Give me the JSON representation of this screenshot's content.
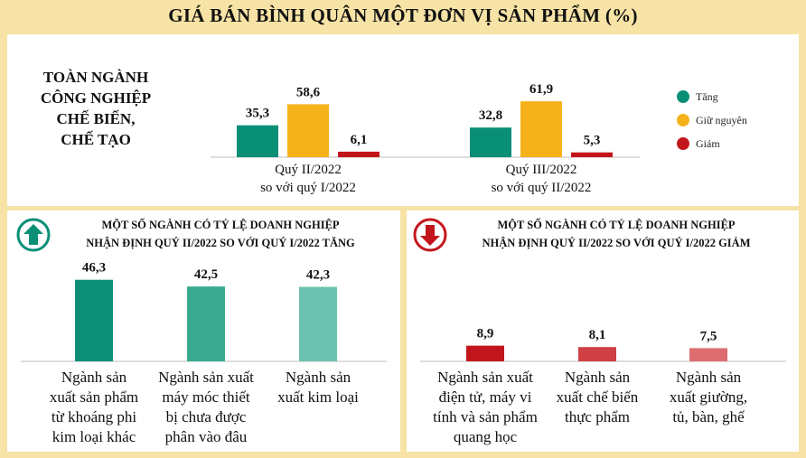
{
  "title": "GIÁ BÁN BÌNH QUÂN MỘT ĐƠN VỊ SẢN PHẨM (%)",
  "colors": {
    "tang": "#0a8f77",
    "giu_nguyen": "#f6b21b",
    "giam": "#c3161c",
    "up_bar": [
      "#0c8f76",
      "#3aab91",
      "#6cc2b0"
    ],
    "down_bar": [
      "#c3161c",
      "#cf3f43",
      "#dd6d6f"
    ]
  },
  "icons": {
    "up": "arrow-up-circle-icon",
    "down": "arrow-down-circle-icon"
  },
  "chart_data": [
    {
      "type": "bar",
      "title": "TOÀN NGÀNH CÔNG NGHIỆP CHẾ BIẾN, CHẾ TẠO",
      "title_lines": [
        "TOÀN NGÀNH",
        "CÔNG NGHIỆP",
        "CHẾ BIẾN,",
        "CHẾ TẠO"
      ],
      "categories": [
        "Quý II/2022 so với quý I/2022",
        "Quý III/2022 so với quý II/2022"
      ],
      "category_lines": [
        [
          "Quý II/2022",
          "so với quý I/2022"
        ],
        [
          "Quý III/2022",
          "so với quý II/2022"
        ]
      ],
      "series": [
        {
          "name": "Tăng",
          "values": [
            35.3,
            32.8
          ],
          "labels": [
            "35,3",
            "32,8"
          ]
        },
        {
          "name": "Giữ nguyên",
          "values": [
            58.6,
            61.9
          ],
          "labels": [
            "58,6",
            "61,9"
          ]
        },
        {
          "name": "Giảm",
          "values": [
            6.1,
            5.3
          ],
          "labels": [
            "6,1",
            "5,3"
          ]
        }
      ],
      "ylim": [
        0,
        65
      ],
      "legend": "right"
    },
    {
      "type": "bar",
      "title": "MỘT SỐ NGÀNH CÓ TỶ LỆ DOANH NGHIỆP NHẬN ĐỊNH QUÝ II/2022 SO VỚI QUÝ I/2022 TĂNG",
      "title_lines": [
        "MỘT SỐ NGÀNH CÓ TỶ LỆ DOANH NGHIỆP",
        "NHẬN ĐỊNH QUÝ II/2022 SO VỚI QUÝ I/2022 TĂNG"
      ],
      "categories": [
        "Ngành sản xuất sản phẩm từ khoáng phi kim loại khác",
        "Ngành sản xuất máy móc thiết bị chưa được phân vào đâu",
        "Ngành sản xuất kim loại"
      ],
      "category_lines": [
        [
          "Ngành sản",
          "xuất sản phẩm",
          "từ khoáng phi",
          "kim loại khác"
        ],
        [
          "Ngành sản xuất",
          "máy móc thiết",
          "bị chưa được",
          "phân vào đâu"
        ],
        [
          "Ngành sản",
          "xuất kim loại"
        ]
      ],
      "values": [
        46.3,
        42.5,
        42.3
      ],
      "labels": [
        "46,3",
        "42,5",
        "42,3"
      ],
      "ylim": [
        0,
        50
      ]
    },
    {
      "type": "bar",
      "title": "MỘT SỐ NGÀNH CÓ TỶ LỆ DOANH NGHIỆP NHẬN ĐỊNH QUÝ II/2022 SO VỚI QUÝ I/2022 GIẢM",
      "title_lines": [
        "MỘT SỐ NGÀNH CÓ TỶ LỆ DOANH NGHIỆP",
        "NHẬN ĐỊNH QUÝ II/2022 SO VỚI QUÝ I/2022 GIẢM"
      ],
      "categories": [
        "Ngành sản xuất điện tử, máy vi tính và sản phẩm quang học",
        "Ngành sản xuất chế biến thực phẩm",
        "Ngành sản xuất giường, tủ, bàn, ghế"
      ],
      "category_lines": [
        [
          "Ngành sản xuất",
          "điện tử, máy vi",
          "tính và sản phẩm",
          "quang học"
        ],
        [
          "Ngành sản",
          "xuất chế biến",
          "thực phẩm"
        ],
        [
          "Ngành sản",
          "xuất giường,",
          "tủ, bàn, ghế"
        ]
      ],
      "values": [
        8.9,
        8.1,
        7.5
      ],
      "labels": [
        "8,9",
        "8,1",
        "7,5"
      ],
      "ylim": [
        0,
        50
      ]
    }
  ]
}
